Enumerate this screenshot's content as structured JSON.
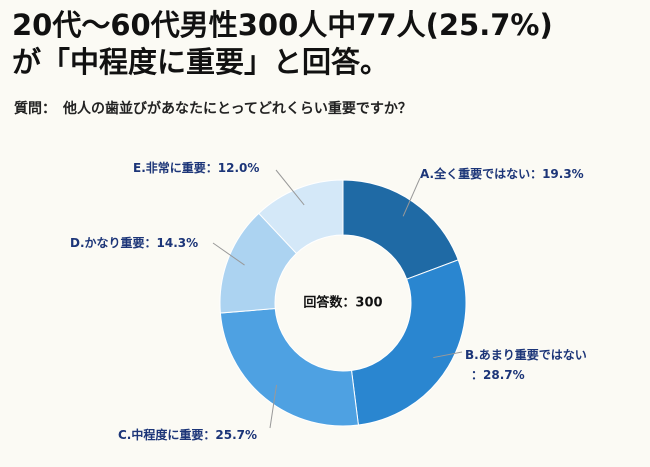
{
  "chart_data": {
    "type": "donut",
    "title": [
      "20代〜60代男性300人中77人(25.7%)",
      "が「中程度に重要」と回答。"
    ],
    "subtitle": "質問：　他人の歯並びがあなたにとってどれくらい重要ですか？",
    "center_label": "回答数：300",
    "categories": [
      "A.全く重要ではない",
      "B.あまり重要ではない",
      "C.中程度に重要",
      "D.かなり重要",
      "E.非常に重要"
    ],
    "values": [
      19.3,
      28.7,
      25.7,
      14.3,
      12.0
    ],
    "value_labels": [
      "：19.3%",
      "：28.7%",
      "：25.7%",
      "：14.3%",
      "：12.0%"
    ],
    "colors": [
      "#1f6aa5",
      "#2a86d0",
      "#4ea1e2",
      "#acd3f1",
      "#d4e8f8"
    ]
  }
}
